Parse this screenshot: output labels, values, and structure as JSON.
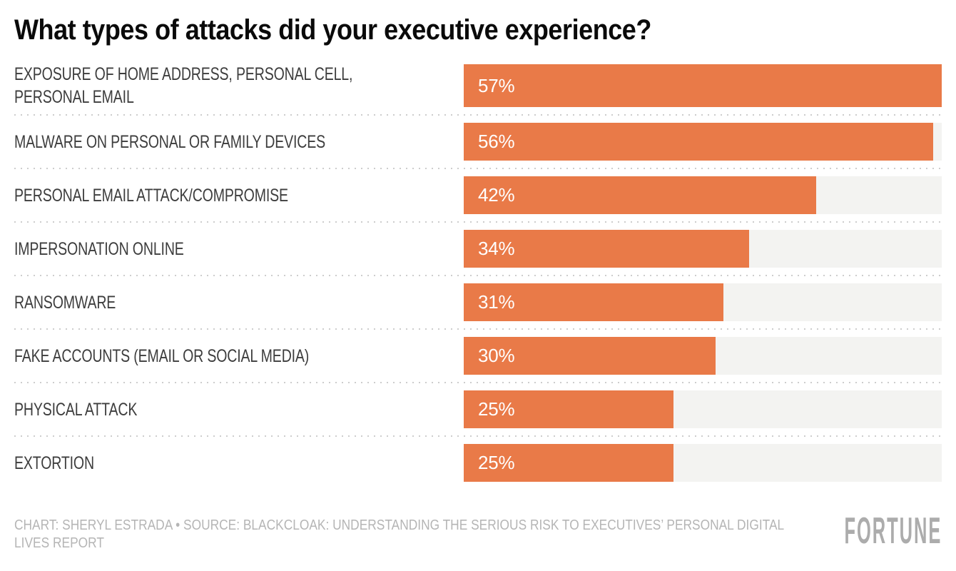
{
  "title": "What types of attacks did your executive experience?",
  "chart_data": {
    "type": "bar",
    "orientation": "horizontal",
    "title": "What types of attacks did your executive experience?",
    "categories": [
      "EXPOSURE OF HOME ADDRESS, PERSONAL CELL, PERSONAL EMAIL",
      "MALWARE ON PERSONAL OR FAMILY DEVICES",
      "PERSONAL EMAIL ATTACK/COMPROMISE",
      "IMPERSONATION ONLINE",
      "RANSOMWARE",
      "FAKE ACCOUNTS (EMAIL OR SOCIAL MEDIA)",
      "PHYSICAL ATTACK",
      "EXTORTION"
    ],
    "values": [
      57,
      56,
      42,
      34,
      31,
      30,
      25,
      25
    ],
    "value_suffix": "%",
    "xlabel": "",
    "ylabel": "",
    "xlim": [
      0,
      57
    ],
    "grid": false,
    "legend": false,
    "data_labels": true,
    "bar_color": "#E97A48",
    "track_color": "#F3F3F1",
    "separator_color": "#CDCDCD"
  },
  "footer": {
    "credit": "CHART: SHERYL ESTRADA • SOURCE: BLACKCLOAK: UNDERSTANDING THE SERIOUS RISK TO EXECUTIVES’ PERSONAL DIGITAL LIVES REPORT",
    "logo": "FORTUNE"
  }
}
